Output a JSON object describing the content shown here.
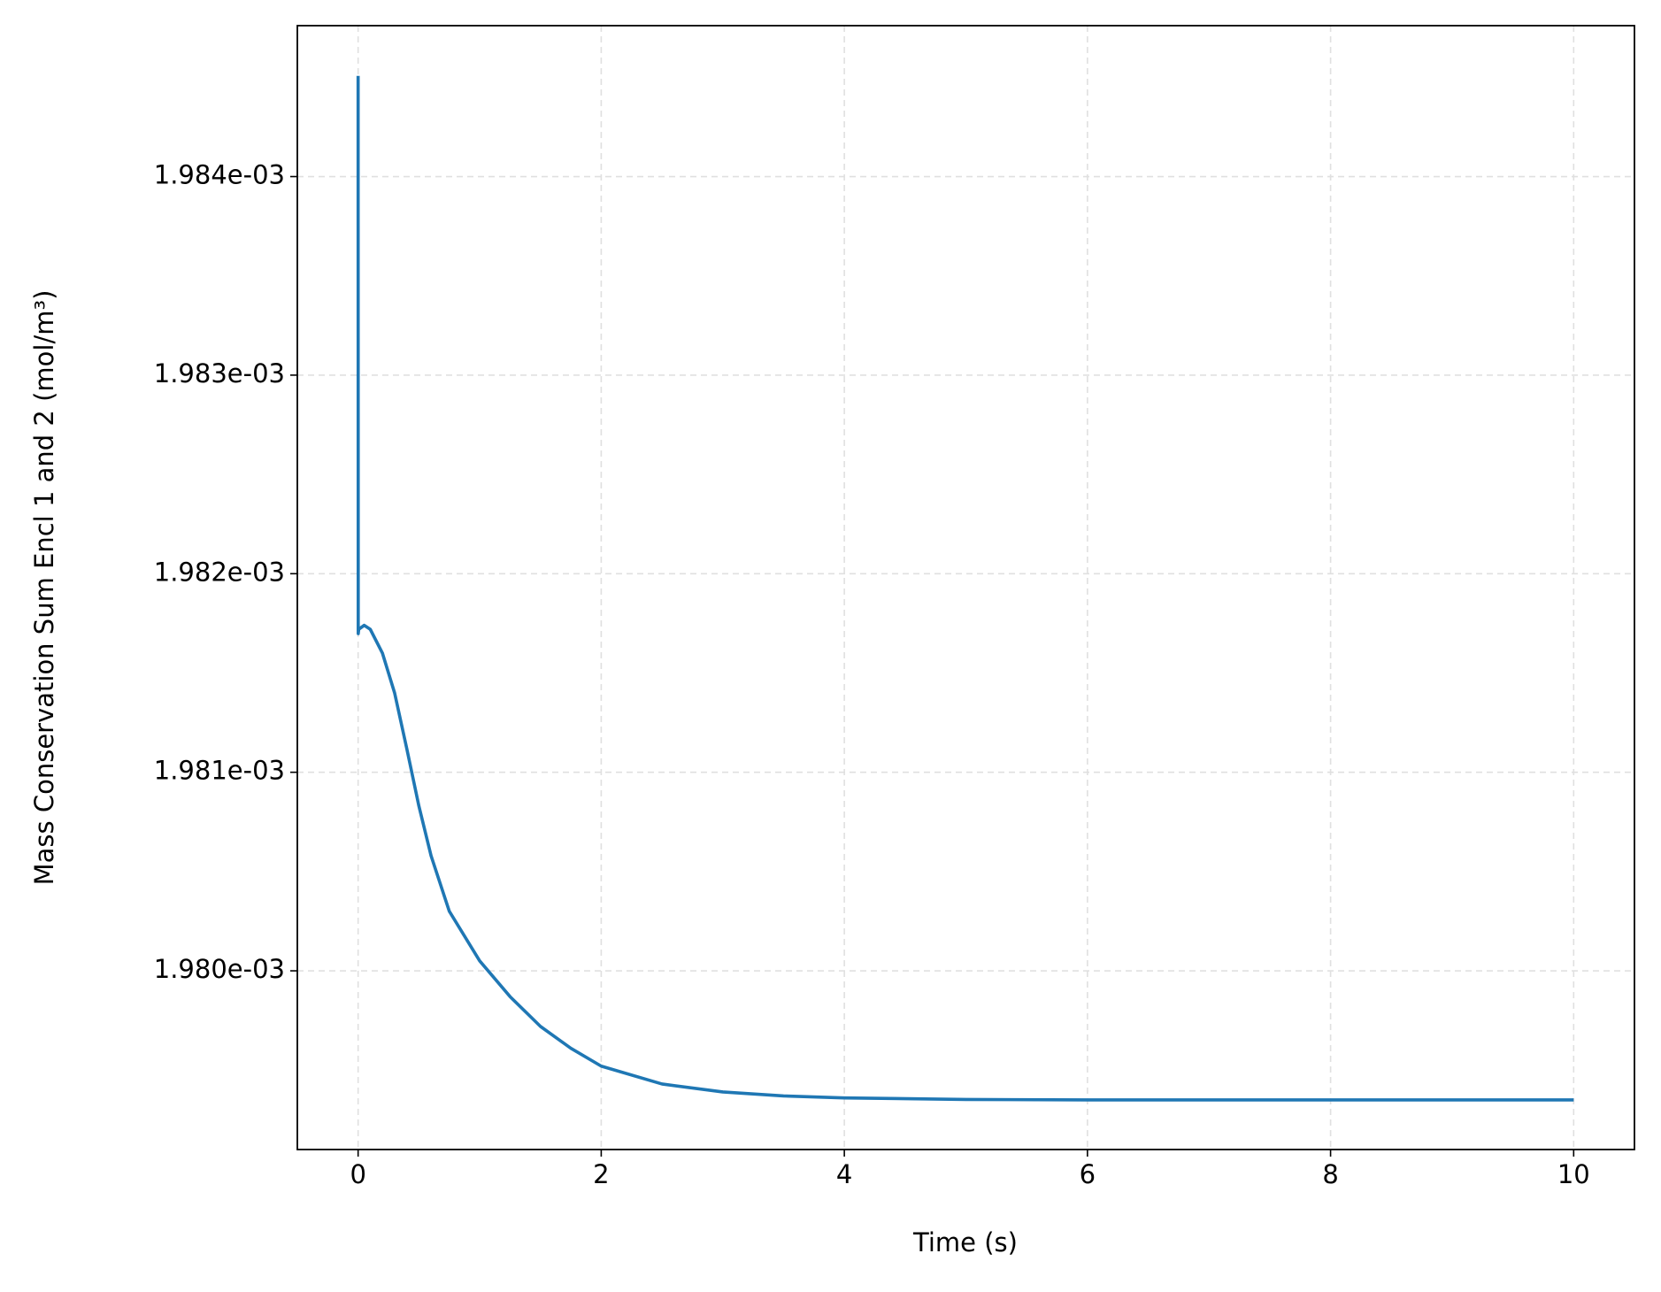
{
  "chart_data": {
    "type": "line",
    "xlabel": "Time (s)",
    "ylabel": "Mass Conservation Sum Encl 1 and 2 (mol/m³)",
    "x": [
      0,
      0.001,
      0.005,
      0.05,
      0.1,
      0.2,
      0.3,
      0.4,
      0.5,
      0.6,
      0.75,
      1,
      1.25,
      1.5,
      1.75,
      2,
      2.5,
      3,
      3.5,
      4,
      5,
      6,
      8,
      10
    ],
    "series": [
      {
        "color": "#1f77b4",
        "values": [
          0.001984507,
          0.001981698,
          0.00198172,
          0.00198174,
          0.00198172,
          0.0019816,
          0.0019814,
          0.00198112,
          0.00198083,
          0.00198058,
          0.0019803,
          0.00198005,
          0.00197987,
          0.00197972,
          0.00197961,
          0.00197952,
          0.00197943,
          0.00197939,
          0.00197937,
          0.00197936,
          0.001979352,
          0.00197935,
          0.00197935,
          0.00197935
        ]
      }
    ],
    "xlim": [
      -0.5,
      10.5
    ],
    "ylim": [
      0.0019791,
      0.00198476
    ],
    "xticks": [
      0,
      2,
      4,
      6,
      8,
      10
    ],
    "yticks": [
      {
        "value": 0.00198,
        "label": "1.980e-03"
      },
      {
        "value": 0.001981,
        "label": "1.981e-03"
      },
      {
        "value": 0.001982,
        "label": "1.982e-03"
      },
      {
        "value": 0.001983,
        "label": "1.983e-03"
      },
      {
        "value": 0.001984,
        "label": "1.984e-03"
      }
    ],
    "grid": true
  }
}
